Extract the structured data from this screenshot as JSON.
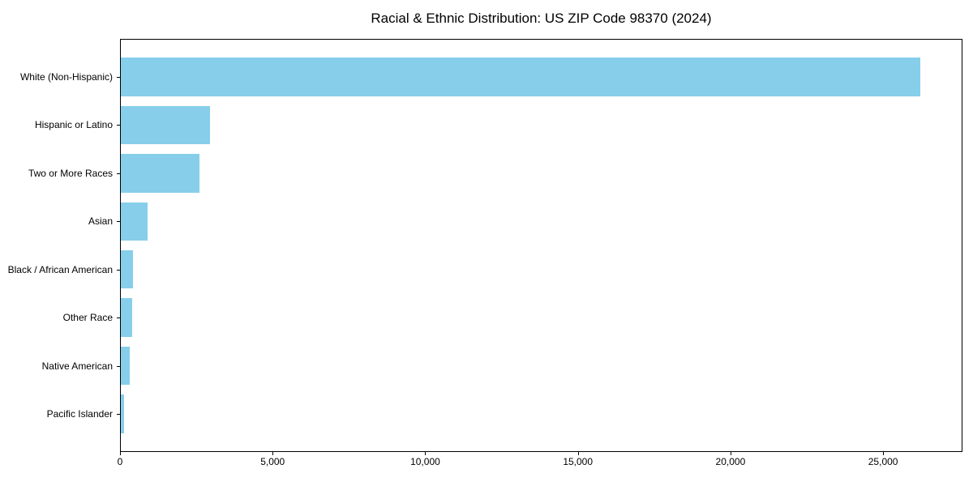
{
  "chart_data": {
    "type": "bar",
    "orientation": "horizontal",
    "title": "Racial & Ethnic Distribution: US ZIP Code 98370 (2024)",
    "categories": [
      "White (Non-Hispanic)",
      "Hispanic or Latino",
      "Two or More Races",
      "Asian",
      "Black / African American",
      "Other Race",
      "Native American",
      "Pacific Islander"
    ],
    "values": [
      26250,
      2920,
      2570,
      890,
      410,
      360,
      290,
      110
    ],
    "xlabel": "",
    "ylabel": "",
    "xlim": [
      0,
      27600
    ],
    "xticks": [
      0,
      5000,
      10000,
      15000,
      20000,
      25000
    ],
    "xtick_labels": [
      "0",
      "5,000",
      "10,000",
      "15,000",
      "20,000",
      "25,000"
    ],
    "bar_color": "#87ceeb",
    "bar_height_fraction": 0.8,
    "grid": false,
    "legend": null
  }
}
